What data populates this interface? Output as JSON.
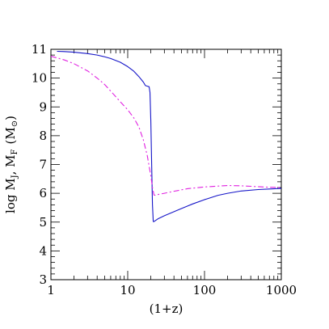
{
  "chart_data": {
    "type": "line",
    "xlabel": "(1+z)",
    "ylabel_main": "log M",
    "ylabel_sub1": "J",
    "ylabel_mid": ", M",
    "ylabel_sub2": "F",
    "ylabel_unit_open": "(M",
    "ylabel_unit_sub": "⊙",
    "ylabel_unit_close": ")",
    "x_scale": "log",
    "xlim": [
      1,
      1000
    ],
    "ylim": [
      3,
      11
    ],
    "x_major_ticks": [
      1,
      10,
      100,
      1000
    ],
    "x_tick_labels": [
      "1",
      "10",
      "100",
      "1000"
    ],
    "y_major_ticks": [
      3,
      4,
      5,
      6,
      7,
      8,
      9,
      10,
      11
    ],
    "y_tick_labels": [
      "3",
      "4",
      "5",
      "6",
      "7",
      "8",
      "9",
      "10",
      "11"
    ],
    "grid": false,
    "series": [
      {
        "line_style": "solid",
        "color": "#1515c8",
        "points": [
          [
            1.2,
            10.93
          ],
          [
            1.5,
            10.92
          ],
          [
            2,
            10.9
          ],
          [
            3,
            10.85
          ],
          [
            4,
            10.8
          ],
          [
            5,
            10.74
          ],
          [
            6,
            10.68
          ],
          [
            8,
            10.55
          ],
          [
            10,
            10.4
          ],
          [
            12,
            10.24
          ],
          [
            14,
            10.05
          ],
          [
            16,
            9.86
          ],
          [
            17,
            9.74
          ],
          [
            18,
            9.72
          ],
          [
            19,
            9.7
          ],
          [
            19.5,
            9.5
          ],
          [
            20,
            8.5
          ],
          [
            20.5,
            7.0
          ],
          [
            21,
            5.6
          ],
          [
            21.5,
            5.02
          ],
          [
            22,
            5.02
          ],
          [
            25,
            5.12
          ],
          [
            30,
            5.22
          ],
          [
            40,
            5.36
          ],
          [
            50,
            5.47
          ],
          [
            70,
            5.63
          ],
          [
            100,
            5.78
          ],
          [
            150,
            5.93
          ],
          [
            200,
            6.0
          ],
          [
            300,
            6.08
          ],
          [
            500,
            6.13
          ],
          [
            700,
            6.15
          ],
          [
            1000,
            6.17
          ]
        ]
      },
      {
        "line_style": "dash-dot",
        "color": "#e020e0",
        "points": [
          [
            1,
            10.76
          ],
          [
            1.5,
            10.63
          ],
          [
            2,
            10.5
          ],
          [
            3,
            10.25
          ],
          [
            4,
            10.0
          ],
          [
            5,
            9.78
          ],
          [
            6,
            9.55
          ],
          [
            8,
            9.18
          ],
          [
            10,
            8.9
          ],
          [
            12,
            8.62
          ],
          [
            14,
            8.3
          ],
          [
            16,
            7.85
          ],
          [
            18,
            7.3
          ],
          [
            20,
            6.6
          ],
          [
            21,
            6.2
          ],
          [
            22,
            5.94
          ],
          [
            23,
            5.93
          ],
          [
            25,
            5.96
          ],
          [
            30,
            6.0
          ],
          [
            40,
            6.07
          ],
          [
            60,
            6.16
          ],
          [
            100,
            6.22
          ],
          [
            150,
            6.25
          ],
          [
            200,
            6.27
          ],
          [
            300,
            6.26
          ],
          [
            500,
            6.23
          ],
          [
            700,
            6.21
          ],
          [
            1000,
            6.2
          ]
        ]
      }
    ]
  }
}
